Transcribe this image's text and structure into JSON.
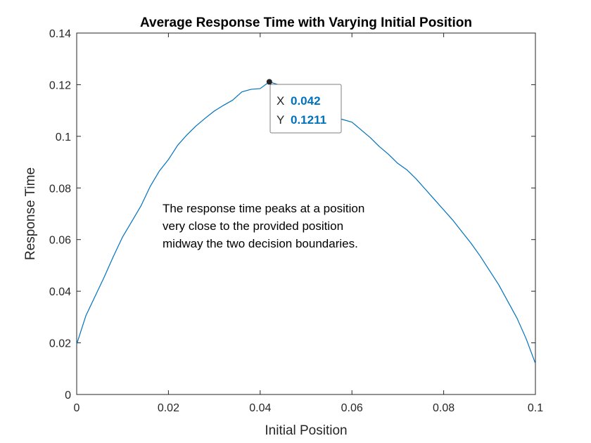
{
  "chart_data": {
    "type": "line",
    "title": "Average Response Time with Varying Initial Position",
    "xlabel": "Initial Position",
    "ylabel": "Response Time",
    "xlim": [
      0,
      0.1
    ],
    "ylim": [
      0,
      0.14
    ],
    "xticks": [
      0,
      0.02,
      0.04,
      0.06,
      0.08,
      0.1
    ],
    "xtick_labels": [
      "0",
      "0.02",
      "0.04",
      "0.06",
      "0.08",
      "0.1"
    ],
    "yticks": [
      0,
      0.02,
      0.04,
      0.06,
      0.08,
      0.1,
      0.12,
      0.14
    ],
    "ytick_labels": [
      "0",
      "0.02",
      "0.04",
      "0.06",
      "0.08",
      "0.1",
      "0.12",
      "0.14"
    ],
    "grid": false,
    "series": [
      {
        "color": "#0072bd",
        "x": [
          0,
          0.002,
          0.004,
          0.006,
          0.008,
          0.01,
          0.012,
          0.014,
          0.016,
          0.018,
          0.02,
          0.022,
          0.024,
          0.026,
          0.028,
          0.03,
          0.032,
          0.034,
          0.036,
          0.038,
          0.04,
          0.042,
          0.044,
          0.046,
          0.048,
          0.05,
          0.052,
          0.054,
          0.056,
          0.058,
          0.06,
          0.062,
          0.064,
          0.066,
          0.068,
          0.07,
          0.072,
          0.074,
          0.076,
          0.078,
          0.08,
          0.082,
          0.084,
          0.086,
          0.088,
          0.09,
          0.092,
          0.094,
          0.096,
          0.098,
          0.1
        ],
        "y": [
          0.0195,
          0.0305,
          0.038,
          0.0455,
          0.0535,
          0.061,
          0.067,
          0.073,
          0.0805,
          0.0865,
          0.091,
          0.0965,
          0.1005,
          0.104,
          0.107,
          0.1098,
          0.112,
          0.114,
          0.1172,
          0.1182,
          0.1185,
          0.1211,
          0.12,
          0.1165,
          0.113,
          0.1105,
          0.1095,
          0.1085,
          0.1075,
          0.1065,
          0.1055,
          0.1025,
          0.0995,
          0.096,
          0.093,
          0.0895,
          0.087,
          0.0835,
          0.0795,
          0.0755,
          0.0715,
          0.0675,
          0.063,
          0.0585,
          0.0535,
          0.048,
          0.0425,
          0.036,
          0.0295,
          0.0215,
          0.012
        ]
      }
    ],
    "datatip": {
      "x_label": "X",
      "x_value": "0.042",
      "y_label": "Y",
      "y_value": "0.1211",
      "x": 0.042,
      "y": 0.1211
    },
    "annotation": [
      "The response time peaks at a position",
      "very close to the provided position",
      "midway the two decision boundaries."
    ]
  }
}
